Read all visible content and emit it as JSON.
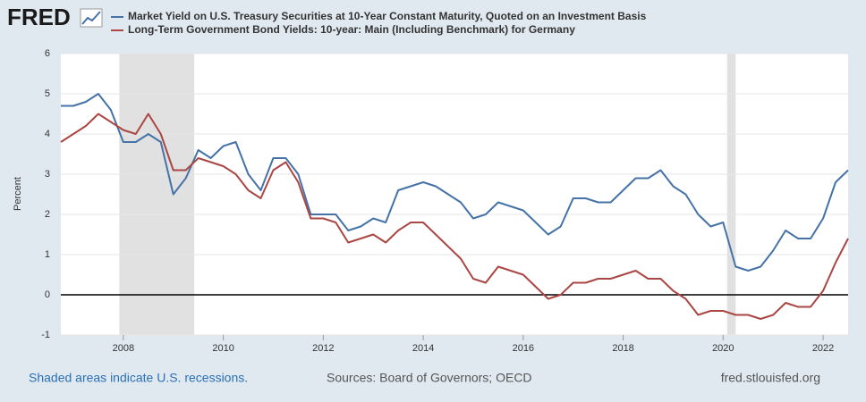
{
  "logo": "FRED",
  "chart_data": {
    "type": "line",
    "y_label": "Percent",
    "recession_note": "Shaded areas indicate U.S. recessions.",
    "source": "Sources: Board of Governors; OECD",
    "site": "fred.stlouisfed.org",
    "recessions": [
      [
        2007.92,
        2009.42
      ],
      [
        2020.08,
        2020.25
      ]
    ],
    "x": [
      2006.75,
      2007,
      2007.25,
      2007.5,
      2007.75,
      2008,
      2008.25,
      2008.5,
      2008.75,
      2009,
      2009.25,
      2009.5,
      2009.75,
      2010,
      2010.25,
      2010.5,
      2010.75,
      2011,
      2011.25,
      2011.5,
      2011.75,
      2012,
      2012.25,
      2012.5,
      2012.75,
      2013,
      2013.25,
      2013.5,
      2013.75,
      2014,
      2014.25,
      2014.5,
      2014.75,
      2015,
      2015.25,
      2015.5,
      2015.75,
      2016,
      2016.25,
      2016.5,
      2016.75,
      2017,
      2017.25,
      2017.5,
      2017.75,
      2018,
      2018.25,
      2018.5,
      2018.75,
      2019,
      2019.25,
      2019.5,
      2019.75,
      2020,
      2020.25,
      2020.5,
      2020.75,
      2021,
      2021.25,
      2021.5,
      2021.75,
      2022,
      2022.25,
      2022.5
    ],
    "series": [
      {
        "name": "Market Yield on U.S. Treasury Securities at 10-Year Constant Maturity, Quoted on an Investment Basis",
        "color": "#4572a7",
        "values": [
          4.7,
          4.7,
          4.8,
          5.0,
          4.6,
          3.8,
          3.8,
          4.0,
          3.8,
          2.5,
          2.9,
          3.6,
          3.4,
          3.7,
          3.8,
          3.0,
          2.6,
          3.4,
          3.4,
          3.0,
          2.0,
          2.0,
          2.0,
          1.6,
          1.7,
          1.9,
          1.8,
          2.6,
          2.7,
          2.8,
          2.7,
          2.5,
          2.3,
          1.9,
          2.0,
          2.3,
          2.2,
          2.1,
          1.8,
          1.5,
          1.7,
          2.4,
          2.4,
          2.3,
          2.3,
          2.6,
          2.9,
          2.9,
          3.1,
          2.7,
          2.5,
          2.0,
          1.7,
          1.8,
          0.7,
          0.6,
          0.7,
          1.1,
          1.6,
          1.4,
          1.4,
          1.9,
          2.8,
          3.1
        ]
      },
      {
        "name": "Long-Term Government Bond Yields: 10-year: Main (Including Benchmark) for Germany",
        "color": "#aa4643",
        "values": [
          3.8,
          4.0,
          4.2,
          4.5,
          4.3,
          4.1,
          4.0,
          4.5,
          4.0,
          3.1,
          3.1,
          3.4,
          3.3,
          3.2,
          3.0,
          2.6,
          2.4,
          3.1,
          3.3,
          2.8,
          1.9,
          1.9,
          1.8,
          1.3,
          1.4,
          1.5,
          1.3,
          1.6,
          1.8,
          1.8,
          1.5,
          1.2,
          0.9,
          0.4,
          0.3,
          0.7,
          0.6,
          0.5,
          0.2,
          -0.1,
          0.0,
          0.3,
          0.3,
          0.4,
          0.4,
          0.5,
          0.6,
          0.4,
          0.4,
          0.1,
          -0.1,
          -0.5,
          -0.4,
          -0.4,
          -0.5,
          -0.5,
          -0.6,
          -0.5,
          -0.2,
          -0.3,
          -0.3,
          0.1,
          0.8,
          1.4
        ]
      }
    ],
    "xlim": [
      2006.75,
      2022.5
    ],
    "xticks": [
      2008,
      2010,
      2012,
      2014,
      2016,
      2018,
      2020,
      2022
    ],
    "ylim": [
      -1,
      6
    ],
    "yticks": [
      -1,
      0,
      1,
      2,
      3,
      4,
      5,
      6
    ],
    "grid": true
  }
}
